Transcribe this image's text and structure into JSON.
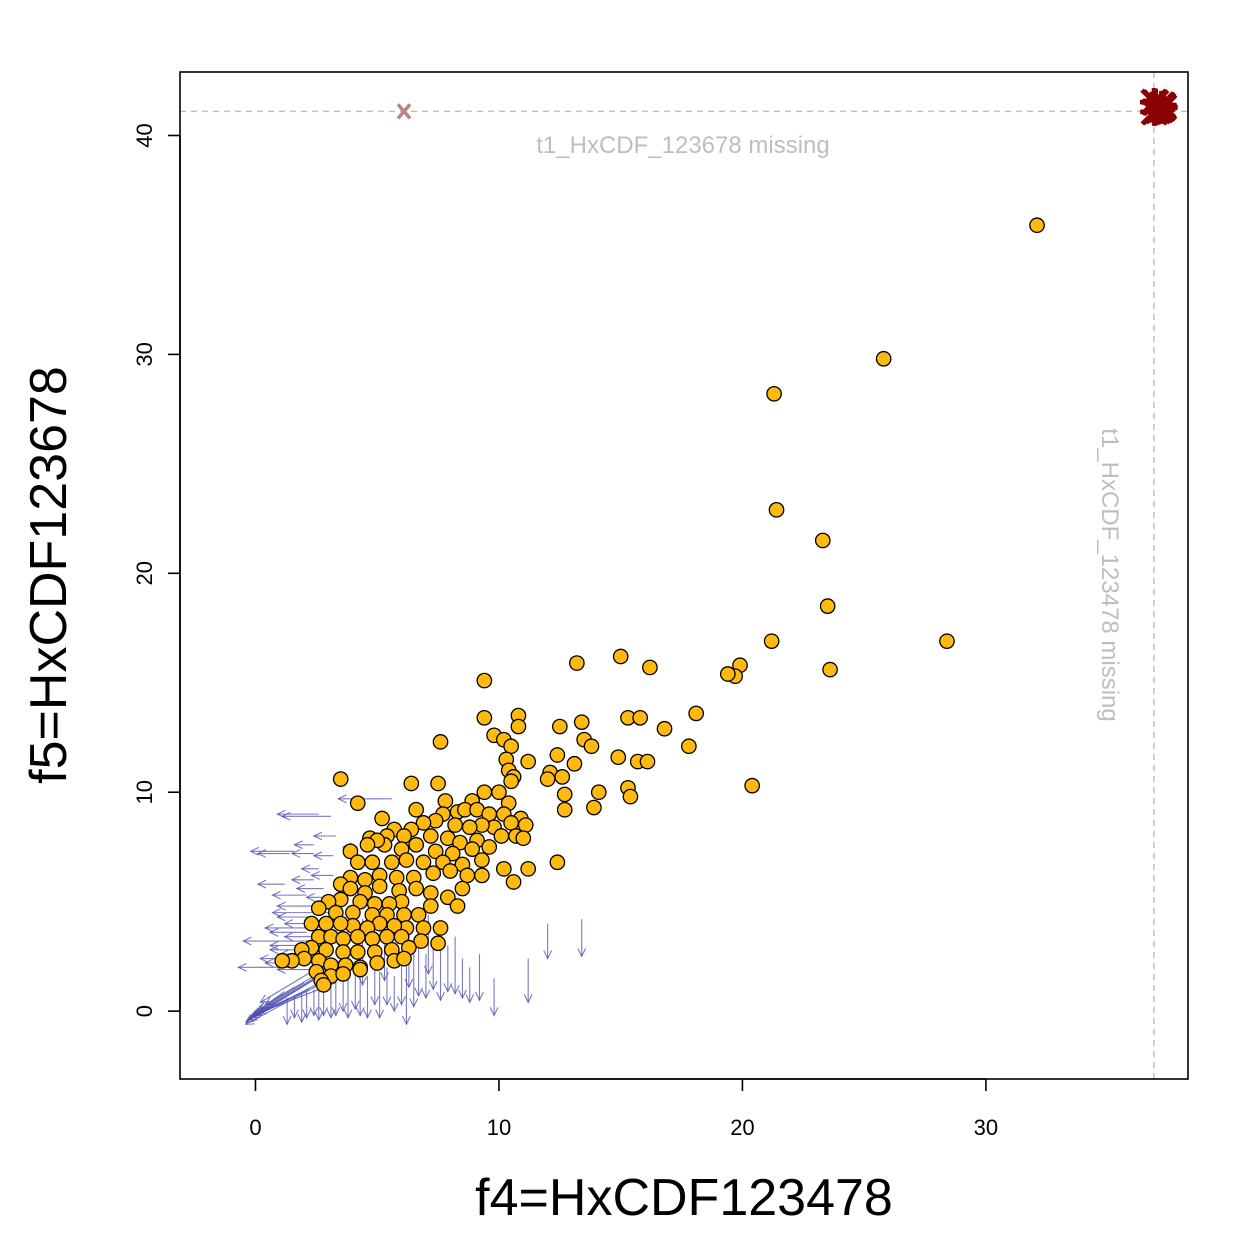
{
  "chart_data": {
    "type": "scatter",
    "xlabel": "f4=HxCDF123478",
    "ylabel": "f5=HxCDF123678",
    "xlim": [
      -3.1,
      38.3
    ],
    "ylim": [
      -3.1,
      42.9
    ],
    "x_ticks": [
      0,
      10,
      20,
      30
    ],
    "y_ticks": [
      0,
      10,
      20,
      30,
      40
    ],
    "grid": false,
    "colors": {
      "point_fill": "#ffb90f",
      "point_stroke": "#000000",
      "arrow": "#4b4bb0",
      "missing_marker": "#8b0000",
      "missing_x_marker": "#c08080",
      "missing_line": "#bebebe",
      "missing_text": "#bebebe"
    },
    "missing": {
      "x_value": 36.9,
      "y_value": 41.1,
      "y_missing_label": "t1_HxCDF_123678 missing",
      "x_missing_label": "t1_HxCDF_123478 missing",
      "x_marker": {
        "x": 6.1,
        "y": 41.1,
        "symbol": "x"
      },
      "corner_cluster": {
        "x": 37.1,
        "y": 41.3,
        "count": 10
      }
    },
    "points": [
      [
        32.1,
        35.9
      ],
      [
        25.8,
        29.8
      ],
      [
        21.3,
        28.2
      ],
      [
        21.4,
        22.9
      ],
      [
        23.3,
        21.5
      ],
      [
        23.5,
        18.5
      ],
      [
        28.4,
        16.9
      ],
      [
        21.2,
        16.9
      ],
      [
        23.6,
        15.6
      ],
      [
        19.9,
        15.8
      ],
      [
        19.7,
        15.3
      ],
      [
        19.4,
        15.4
      ],
      [
        15.0,
        16.2
      ],
      [
        16.2,
        15.7
      ],
      [
        13.2,
        15.9
      ],
      [
        9.4,
        15.1
      ],
      [
        18.1,
        13.6
      ],
      [
        16.8,
        12.9
      ],
      [
        17.8,
        12.1
      ],
      [
        15.3,
        13.4
      ],
      [
        15.8,
        13.4
      ],
      [
        13.4,
        13.2
      ],
      [
        12.5,
        13.0
      ],
      [
        10.8,
        13.5
      ],
      [
        10.8,
        13.0
      ],
      [
        9.4,
        13.4
      ],
      [
        9.8,
        12.6
      ],
      [
        10.2,
        12.4
      ],
      [
        10.5,
        12.1
      ],
      [
        13.5,
        12.4
      ],
      [
        13.8,
        12.1
      ],
      [
        7.6,
        12.3
      ],
      [
        12.4,
        11.7
      ],
      [
        13.1,
        11.3
      ],
      [
        14.9,
        11.6
      ],
      [
        15.7,
        11.4
      ],
      [
        16.1,
        11.4
      ],
      [
        10.3,
        11.5
      ],
      [
        11.2,
        11.4
      ],
      [
        10.4,
        11.0
      ],
      [
        12.1,
        10.9
      ],
      [
        12.6,
        10.7
      ],
      [
        12.0,
        10.6
      ],
      [
        10.6,
        10.7
      ],
      [
        10.5,
        10.5
      ],
      [
        3.5,
        10.6
      ],
      [
        6.4,
        10.4
      ],
      [
        7.5,
        10.4
      ],
      [
        20.4,
        10.3
      ],
      [
        15.3,
        10.2
      ],
      [
        14.1,
        10.0
      ],
      [
        15.4,
        9.8
      ],
      [
        12.7,
        9.9
      ],
      [
        9.4,
        10.0
      ],
      [
        10.0,
        10.0
      ],
      [
        4.2,
        9.5
      ],
      [
        7.8,
        9.6
      ],
      [
        8.9,
        9.6
      ],
      [
        10.4,
        9.5
      ],
      [
        12.7,
        9.2
      ],
      [
        13.9,
        9.3
      ],
      [
        6.6,
        9.2
      ],
      [
        7.7,
        9.0
      ],
      [
        8.3,
        9.1
      ],
      [
        8.6,
        9.2
      ],
      [
        9.1,
        9.2
      ],
      [
        9.6,
        9.0
      ],
      [
        10.2,
        9.0
      ],
      [
        10.9,
        8.8
      ],
      [
        11.1,
        8.5
      ],
      [
        10.5,
        8.6
      ],
      [
        9.8,
        8.4
      ],
      [
        9.3,
        8.5
      ],
      [
        8.8,
        8.4
      ],
      [
        8.2,
        8.5
      ],
      [
        7.4,
        8.7
      ],
      [
        6.9,
        8.6
      ],
      [
        6.4,
        8.3
      ],
      [
        5.7,
        8.3
      ],
      [
        5.2,
        8.8
      ],
      [
        5.4,
        8.0
      ],
      [
        6.1,
        8.0
      ],
      [
        7.2,
        8.0
      ],
      [
        7.9,
        7.9
      ],
      [
        8.4,
        7.7
      ],
      [
        9.1,
        7.8
      ],
      [
        10.1,
        8.0
      ],
      [
        10.7,
        8.0
      ],
      [
        11.0,
        7.9
      ],
      [
        9.6,
        7.5
      ],
      [
        8.9,
        7.4
      ],
      [
        8.1,
        7.2
      ],
      [
        7.4,
        7.3
      ],
      [
        6.6,
        7.6
      ],
      [
        6.0,
        7.4
      ],
      [
        5.3,
        7.6
      ],
      [
        4.7,
        7.9
      ],
      [
        5.0,
        7.8
      ],
      [
        4.6,
        7.6
      ],
      [
        3.9,
        7.3
      ],
      [
        4.2,
        6.8
      ],
      [
        4.8,
        6.8
      ],
      [
        5.6,
        6.8
      ],
      [
        6.2,
        6.9
      ],
      [
        6.9,
        6.8
      ],
      [
        7.7,
        6.8
      ],
      [
        8.5,
        6.7
      ],
      [
        9.3,
        6.9
      ],
      [
        10.2,
        6.5
      ],
      [
        11.2,
        6.5
      ],
      [
        12.4,
        6.8
      ],
      [
        10.6,
        5.9
      ],
      [
        9.3,
        6.2
      ],
      [
        8.7,
        6.2
      ],
      [
        8.0,
        6.4
      ],
      [
        7.3,
        6.3
      ],
      [
        6.5,
        6.1
      ],
      [
        5.8,
        6.1
      ],
      [
        5.1,
        6.2
      ],
      [
        4.5,
        6.0
      ],
      [
        3.9,
        6.1
      ],
      [
        3.5,
        5.8
      ],
      [
        3.9,
        5.6
      ],
      [
        4.5,
        5.4
      ],
      [
        5.1,
        5.7
      ],
      [
        5.9,
        5.5
      ],
      [
        6.6,
        5.6
      ],
      [
        7.2,
        5.4
      ],
      [
        7.9,
        5.2
      ],
      [
        8.5,
        5.6
      ],
      [
        6.0,
        5.0
      ],
      [
        5.5,
        4.9
      ],
      [
        4.9,
        4.9
      ],
      [
        4.3,
        5.0
      ],
      [
        3.5,
        5.1
      ],
      [
        3.0,
        5.0
      ],
      [
        2.6,
        4.7
      ],
      [
        3.3,
        4.5
      ],
      [
        4.0,
        4.5
      ],
      [
        4.8,
        4.4
      ],
      [
        5.4,
        4.4
      ],
      [
        6.1,
        4.4
      ],
      [
        6.7,
        4.4
      ],
      [
        7.2,
        4.8
      ],
      [
        8.3,
        4.8
      ],
      [
        7.6,
        3.8
      ],
      [
        6.9,
        3.8
      ],
      [
        6.2,
        3.8
      ],
      [
        5.7,
        3.9
      ],
      [
        5.1,
        4.0
      ],
      [
        4.6,
        3.8
      ],
      [
        4.0,
        3.9
      ],
      [
        3.5,
        4.0
      ],
      [
        2.9,
        4.0
      ],
      [
        2.3,
        4.0
      ],
      [
        2.6,
        3.4
      ],
      [
        3.1,
        3.4
      ],
      [
        3.6,
        3.3
      ],
      [
        4.2,
        3.4
      ],
      [
        4.8,
        3.3
      ],
      [
        5.4,
        3.4
      ],
      [
        6.0,
        3.4
      ],
      [
        6.8,
        3.2
      ],
      [
        7.5,
        3.1
      ],
      [
        6.3,
        2.9
      ],
      [
        5.6,
        2.8
      ],
      [
        4.9,
        2.7
      ],
      [
        4.2,
        2.7
      ],
      [
        3.6,
        2.7
      ],
      [
        2.9,
        2.8
      ],
      [
        2.3,
        2.9
      ],
      [
        1.9,
        2.8
      ],
      [
        2.0,
        2.4
      ],
      [
        2.6,
        2.3
      ],
      [
        3.1,
        2.1
      ],
      [
        3.7,
        2.1
      ],
      [
        4.3,
        2.0
      ],
      [
        5.0,
        2.2
      ],
      [
        5.7,
        2.3
      ],
      [
        6.1,
        2.4
      ],
      [
        1.5,
        2.3
      ],
      [
        1.1,
        2.3
      ],
      [
        2.5,
        1.8
      ],
      [
        3.1,
        1.6
      ],
      [
        3.6,
        1.7
      ],
      [
        4.3,
        1.9
      ],
      [
        2.7,
        1.4
      ],
      [
        2.8,
        1.2
      ]
    ],
    "left_arrows": [
      [
        2.6,
        9.0,
        0.9,
        9.0
      ],
      [
        3.1,
        8.9,
        1.1,
        8.9
      ],
      [
        3.3,
        8.0,
        2.4,
        8.0
      ],
      [
        2.4,
        7.6,
        1.6,
        7.6
      ],
      [
        1.6,
        7.3,
        -0.2,
        7.3
      ],
      [
        1.4,
        7.2,
        0.1,
        7.2
      ],
      [
        2.4,
        7.2,
        1.5,
        7.2
      ],
      [
        3.2,
        7.1,
        2.4,
        7.1
      ],
      [
        2.6,
        6.5,
        1.9,
        6.5
      ],
      [
        3.2,
        6.2,
        2.3,
        6.2
      ],
      [
        2.4,
        6.0,
        1.5,
        6.0
      ],
      [
        1.2,
        5.8,
        0.1,
        5.8
      ],
      [
        2.8,
        5.6,
        1.7,
        5.6
      ],
      [
        2.1,
        5.3,
        0.7,
        5.3
      ],
      [
        3.0,
        5.2,
        2.1,
        5.2
      ],
      [
        2.7,
        4.8,
        0.9,
        4.8
      ],
      [
        3.1,
        4.5,
        0.7,
        4.5
      ],
      [
        2.4,
        4.3,
        0.9,
        4.3
      ],
      [
        3.0,
        4.0,
        1.2,
        4.0
      ],
      [
        2.5,
        3.8,
        0.4,
        3.8
      ],
      [
        2.1,
        3.6,
        0.6,
        3.6
      ],
      [
        2.9,
        3.4,
        1.2,
        3.4
      ],
      [
        2.2,
        3.2,
        -0.5,
        3.2
      ],
      [
        2.7,
        3.0,
        0.6,
        3.0
      ],
      [
        2.1,
        2.8,
        0.6,
        2.8
      ],
      [
        2.5,
        2.6,
        1.0,
        2.6
      ],
      [
        2.0,
        2.4,
        0.2,
        2.4
      ],
      [
        1.8,
        2.2,
        0.4,
        2.2
      ],
      [
        1.4,
        2.0,
        -0.7,
        2.0
      ],
      [
        2.3,
        1.9,
        0.9,
        1.9
      ],
      [
        5.6,
        9.7,
        3.4,
        9.7
      ],
      [
        4.2,
        7.5,
        3.6,
        7.5
      ]
    ],
    "down_arrows": [
      [
        12.0,
        4.0,
        12.0,
        2.4
      ],
      [
        13.4,
        4.2,
        13.4,
        2.5
      ],
      [
        11.2,
        2.4,
        11.2,
        0.4
      ],
      [
        9.8,
        1.5,
        9.8,
        -0.2
      ],
      [
        9.2,
        2.6,
        9.2,
        0.5
      ],
      [
        8.8,
        2.0,
        8.8,
        0.4
      ],
      [
        8.5,
        2.4,
        8.5,
        0.6
      ],
      [
        8.2,
        3.4,
        8.2,
        0.8
      ],
      [
        7.9,
        3.0,
        7.9,
        0.9
      ],
      [
        7.6,
        3.2,
        7.6,
        0.5
      ],
      [
        7.3,
        3.0,
        7.3,
        1.0
      ],
      [
        7.0,
        2.6,
        7.0,
        0.6
      ],
      [
        6.7,
        3.2,
        6.7,
        0.7
      ],
      [
        6.5,
        2.6,
        6.5,
        0.2
      ],
      [
        6.2,
        2.4,
        6.2,
        -0.6
      ],
      [
        6.0,
        2.2,
        6.0,
        0.3
      ],
      [
        5.7,
        1.6,
        5.7,
        0.0
      ],
      [
        5.4,
        2.0,
        5.4,
        0.3
      ],
      [
        5.1,
        1.8,
        5.1,
        -0.3
      ],
      [
        4.9,
        2.1,
        4.9,
        0.3
      ],
      [
        4.6,
        1.6,
        4.6,
        -0.3
      ],
      [
        4.3,
        1.9,
        4.3,
        -0.2
      ],
      [
        4.1,
        1.7,
        4.1,
        0.1
      ],
      [
        3.8,
        1.6,
        3.8,
        -0.3
      ],
      [
        3.6,
        1.5,
        3.6,
        0.0
      ],
      [
        3.3,
        1.4,
        3.3,
        -0.2
      ],
      [
        3.1,
        1.3,
        3.1,
        -0.3
      ],
      [
        2.8,
        1.2,
        2.8,
        -0.2
      ],
      [
        2.6,
        1.1,
        2.6,
        -0.4
      ],
      [
        2.4,
        1.0,
        2.4,
        -0.2
      ],
      [
        2.1,
        0.9,
        2.1,
        -0.3
      ],
      [
        1.9,
        0.8,
        1.9,
        -0.5
      ],
      [
        1.6,
        0.7,
        1.6,
        -0.3
      ],
      [
        1.3,
        0.6,
        1.3,
        -0.6
      ],
      [
        4.4,
        4.2,
        4.4,
        1.2
      ],
      [
        5.3,
        4.8,
        5.3,
        1.4
      ],
      [
        7.1,
        4.4,
        7.1,
        1.7
      ],
      [
        6.3,
        3.6,
        6.3,
        1.1
      ]
    ],
    "diag_arrows": [
      [
        3.2,
        2.0,
        -0.4,
        -0.5
      ],
      [
        3.0,
        1.5,
        -0.3,
        -0.4
      ],
      [
        2.8,
        1.7,
        -0.2,
        -0.3
      ],
      [
        2.6,
        1.2,
        -0.4,
        -0.6
      ],
      [
        2.4,
        1.5,
        -0.1,
        -0.2
      ],
      [
        2.2,
        1.0,
        -0.3,
        -0.4
      ],
      [
        2.0,
        1.3,
        0.0,
        -0.1
      ],
      [
        1.8,
        0.8,
        -0.2,
        -0.3
      ],
      [
        1.6,
        1.1,
        0.1,
        0.0
      ],
      [
        1.4,
        0.6,
        -0.1,
        -0.2
      ],
      [
        1.2,
        0.9,
        0.2,
        0.1
      ],
      [
        3.5,
        2.3,
        0.4,
        0.3
      ],
      [
        3.3,
        1.3,
        0.1,
        -0.1
      ],
      [
        2.9,
        2.2,
        0.2,
        0.4
      ]
    ]
  }
}
